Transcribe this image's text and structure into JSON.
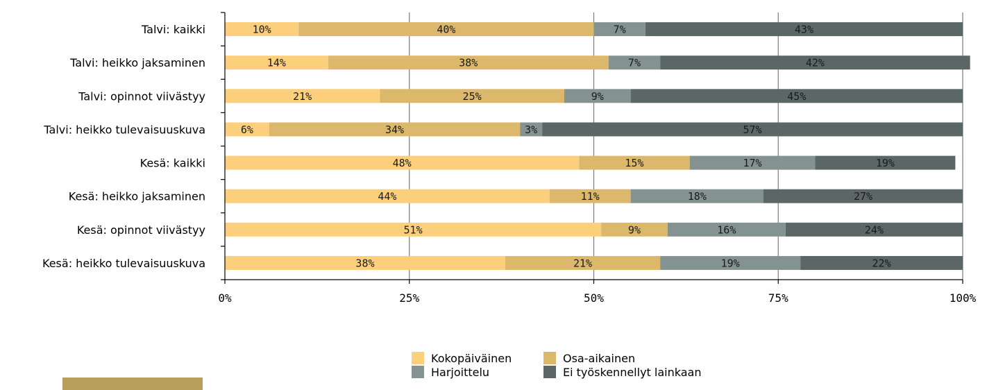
{
  "chart_data": {
    "type": "bar",
    "orientation": "horizontal",
    "stacked": true,
    "percent_stacked": true,
    "categories": [
      "Talvi: kaikki",
      "Talvi: heikko jaksaminen",
      "Talvi: opinnot viivästyy",
      "Talvi: heikko tulevaisuuskuva",
      "Kesä: kaikki",
      "Kesä: heikko jaksaminen",
      "Kesä: opinnot viivästyy",
      "Kesä: heikko tulevaisuuskuva"
    ],
    "series": [
      {
        "name": "Kokopäiväinen",
        "color": "#fbcf7c",
        "values": [
          10,
          14,
          21,
          6,
          48,
          44,
          51,
          38
        ],
        "labels": [
          "10%",
          "14%",
          "21%",
          "6%",
          "48%",
          "44%",
          "51%",
          "38%"
        ]
      },
      {
        "name": "Osa-aikainen",
        "color": "#dcb86c",
        "values": [
          40,
          38,
          25,
          34,
          15,
          11,
          9,
          21
        ],
        "labels": [
          "40%",
          "38%",
          "25%",
          "34%",
          "15%",
          "11%",
          "9%",
          "21%"
        ]
      },
      {
        "name": "Harjoittelu",
        "color": "#849391",
        "values": [
          7,
          7,
          9,
          3,
          17,
          18,
          16,
          19
        ],
        "labels": [
          "7%",
          "7%",
          "9%",
          "3%",
          "17%",
          "18%",
          "16%",
          "19%"
        ]
      },
      {
        "name": "Ei työskennellyt lainkaan",
        "color": "#5b6766",
        "values": [
          43,
          42,
          45,
          57,
          19,
          27,
          24,
          22
        ],
        "labels": [
          "43%",
          "42%",
          "45%",
          "57%",
          "19%",
          "27%",
          "24%",
          "22%"
        ]
      }
    ],
    "x_ticks": [
      "0%",
      "25%",
      "50%",
      "75%",
      "100%"
    ],
    "xlim": [
      0,
      100
    ],
    "grid": "vertical",
    "legend_position": "bottom"
  },
  "decoration": {
    "bottom_bar_color": "#b8a05a"
  }
}
